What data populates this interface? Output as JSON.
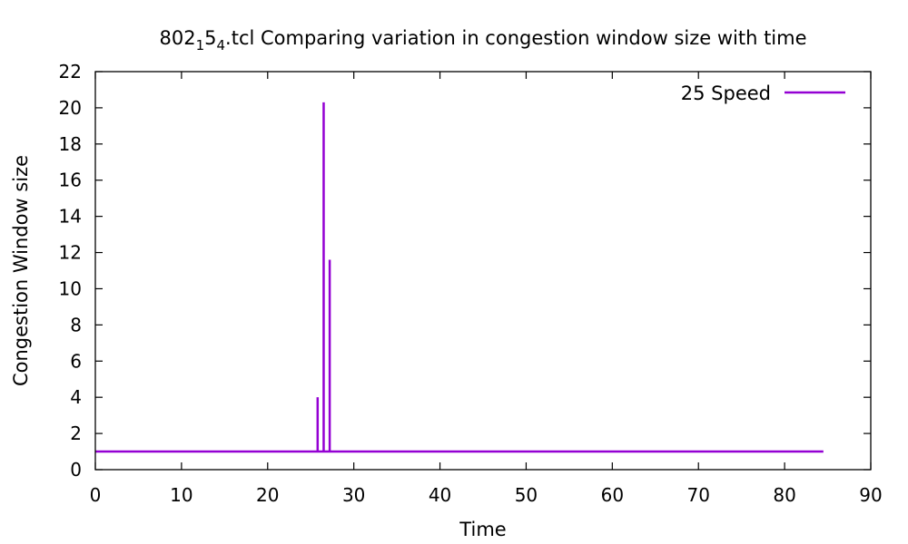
{
  "chart_data": {
    "type": "line",
    "title": {
      "base": "802",
      "sub1": "1",
      "mid": "5",
      "sub2": "4",
      "rest": ".tcl Comparing variation in congestion window size with time"
    },
    "xlabel": "Time",
    "ylabel": "Congestion Window size",
    "xlim": [
      0,
      90
    ],
    "ylim": [
      0,
      22
    ],
    "xticks": [
      0,
      10,
      20,
      30,
      40,
      50,
      60,
      70,
      80,
      90
    ],
    "yticks": [
      0,
      2,
      4,
      6,
      8,
      10,
      12,
      14,
      16,
      18,
      20,
      22
    ],
    "legend_position": "top-right",
    "series": [
      {
        "name": "25 Speed",
        "color": "#9400d3",
        "x": [
          0,
          25.8,
          25.8,
          25.8,
          26.5,
          26.5,
          26.5,
          27.2,
          27.2,
          27.2,
          84.5
        ],
        "y": [
          1,
          1,
          4,
          1,
          1,
          20.3,
          1,
          1,
          11.6,
          1,
          1
        ]
      }
    ]
  }
}
